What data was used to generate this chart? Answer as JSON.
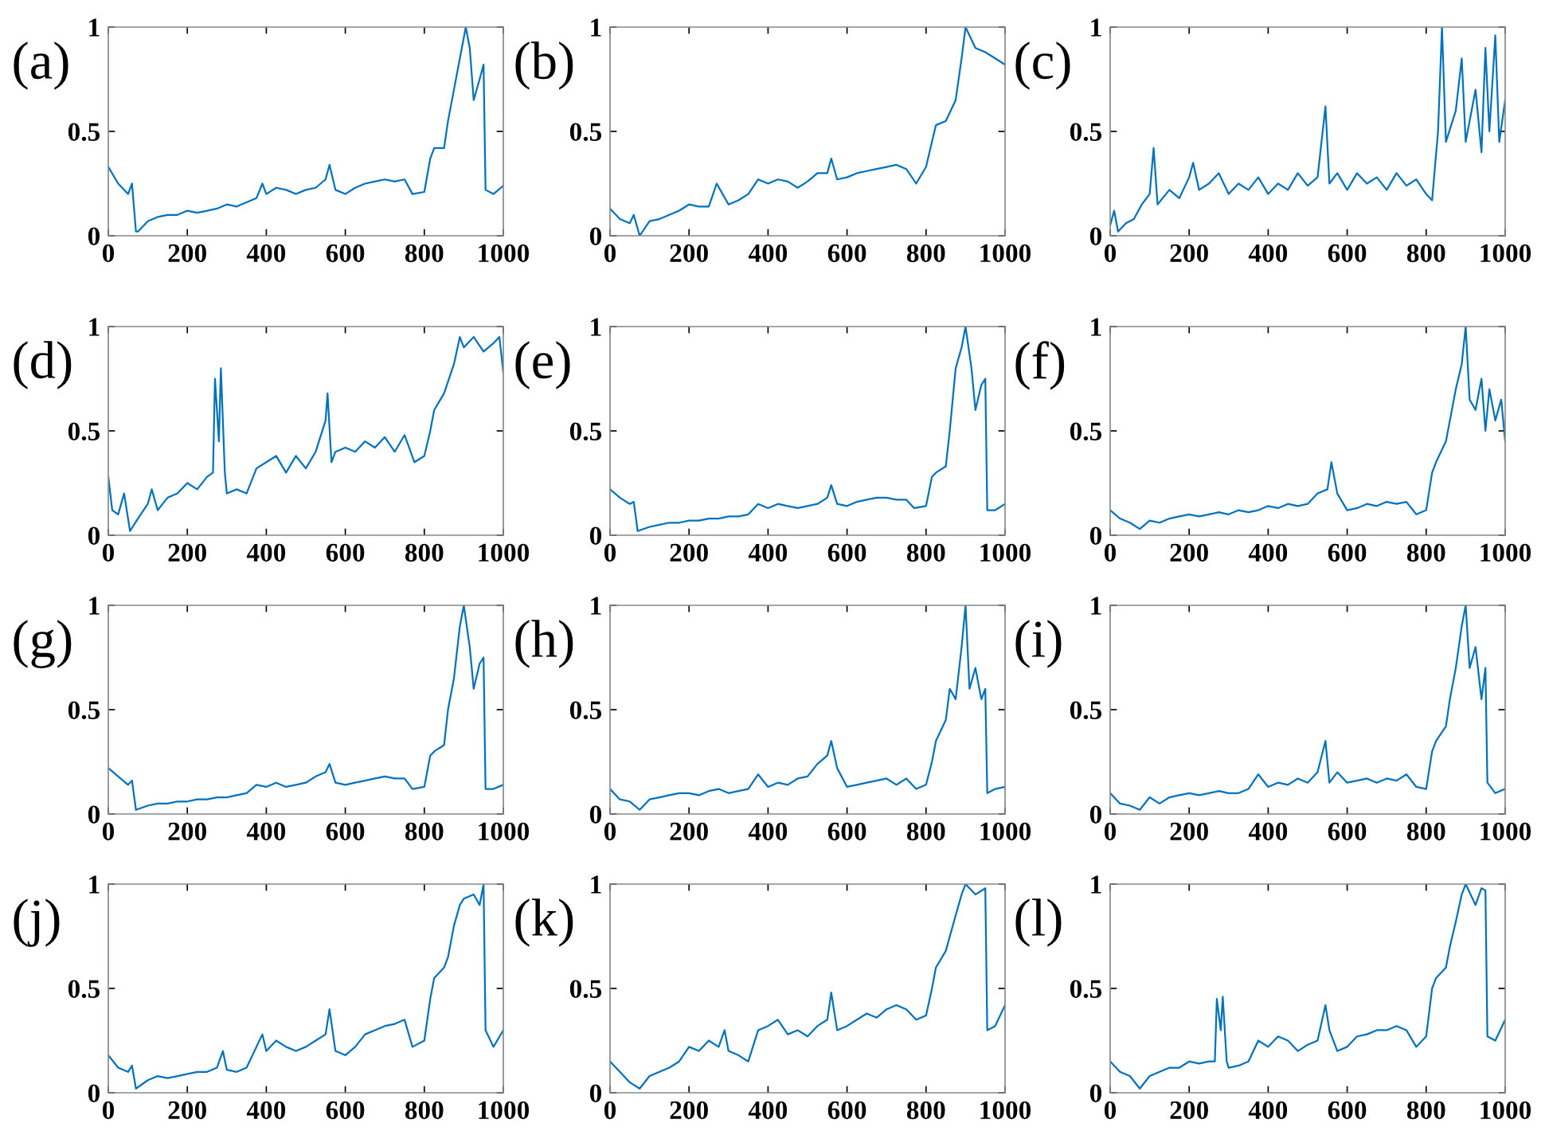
{
  "chart_data": [
    {
      "type": "line",
      "title": "(a)",
      "color": "#0072bd",
      "xlim": [
        0,
        1000
      ],
      "ylim": [
        0,
        1
      ],
      "xticks": [
        0,
        200,
        400,
        600,
        800,
        1000
      ],
      "yticks": [
        0,
        0.5,
        1
      ],
      "x": [
        0,
        25,
        50,
        60,
        70,
        75,
        100,
        125,
        150,
        175,
        200,
        225,
        250,
        275,
        300,
        325,
        350,
        375,
        390,
        400,
        425,
        450,
        475,
        500,
        525,
        550,
        560,
        575,
        600,
        625,
        650,
        675,
        700,
        725,
        750,
        770,
        800,
        815,
        825,
        850,
        860,
        875,
        890,
        905,
        915,
        925,
        940,
        950,
        955,
        975,
        1000
      ],
      "values": [
        0.33,
        0.25,
        0.2,
        0.25,
        0.02,
        0.02,
        0.07,
        0.09,
        0.1,
        0.1,
        0.12,
        0.11,
        0.12,
        0.13,
        0.15,
        0.14,
        0.16,
        0.18,
        0.25,
        0.2,
        0.23,
        0.22,
        0.2,
        0.22,
        0.23,
        0.27,
        0.34,
        0.22,
        0.2,
        0.23,
        0.25,
        0.26,
        0.27,
        0.26,
        0.27,
        0.2,
        0.21,
        0.37,
        0.42,
        0.42,
        0.55,
        0.7,
        0.85,
        1.0,
        0.9,
        0.65,
        0.75,
        0.82,
        0.22,
        0.2,
        0.24
      ]
    },
    {
      "type": "line",
      "title": "(b)",
      "color": "#0072bd",
      "xlim": [
        0,
        1000
      ],
      "ylim": [
        0,
        1
      ],
      "xticks": [
        0,
        200,
        400,
        600,
        800,
        1000
      ],
      "yticks": [
        0,
        0.5,
        1
      ],
      "x": [
        0,
        25,
        50,
        60,
        75,
        100,
        125,
        150,
        175,
        200,
        225,
        250,
        270,
        285,
        300,
        325,
        350,
        375,
        400,
        425,
        450,
        475,
        500,
        525,
        550,
        560,
        575,
        600,
        625,
        650,
        675,
        700,
        725,
        750,
        775,
        800,
        815,
        825,
        850,
        875,
        890,
        900,
        925,
        950,
        975,
        1000
      ],
      "values": [
        0.13,
        0.08,
        0.06,
        0.1,
        0.0,
        0.07,
        0.08,
        0.1,
        0.12,
        0.15,
        0.14,
        0.14,
        0.25,
        0.2,
        0.15,
        0.17,
        0.2,
        0.27,
        0.25,
        0.27,
        0.26,
        0.23,
        0.26,
        0.3,
        0.3,
        0.37,
        0.27,
        0.28,
        0.3,
        0.31,
        0.32,
        0.33,
        0.34,
        0.32,
        0.25,
        0.33,
        0.45,
        0.53,
        0.55,
        0.65,
        0.85,
        1.0,
        0.9,
        0.88,
        0.85,
        0.82
      ]
    },
    {
      "type": "line",
      "title": "(c)",
      "color": "#0072bd",
      "xlim": [
        0,
        1000
      ],
      "ylim": [
        0,
        1
      ],
      "xticks": [
        0,
        200,
        400,
        600,
        800,
        1000
      ],
      "yticks": [
        0,
        0.5,
        1
      ],
      "x": [
        0,
        10,
        20,
        40,
        60,
        80,
        100,
        110,
        120,
        150,
        175,
        200,
        210,
        225,
        250,
        275,
        300,
        325,
        350,
        375,
        400,
        425,
        450,
        475,
        500,
        525,
        545,
        555,
        575,
        600,
        625,
        650,
        675,
        700,
        725,
        750,
        775,
        800,
        815,
        830,
        840,
        850,
        875,
        890,
        900,
        925,
        940,
        950,
        960,
        975,
        985,
        1000
      ],
      "values": [
        0.05,
        0.12,
        0.02,
        0.06,
        0.08,
        0.15,
        0.2,
        0.42,
        0.15,
        0.22,
        0.18,
        0.28,
        0.35,
        0.22,
        0.25,
        0.3,
        0.2,
        0.25,
        0.22,
        0.28,
        0.2,
        0.25,
        0.22,
        0.3,
        0.24,
        0.28,
        0.62,
        0.25,
        0.3,
        0.22,
        0.3,
        0.25,
        0.28,
        0.22,
        0.3,
        0.24,
        0.27,
        0.2,
        0.17,
        0.5,
        1.0,
        0.45,
        0.6,
        0.85,
        0.45,
        0.7,
        0.4,
        0.9,
        0.5,
        0.96,
        0.45,
        0.65
      ]
    },
    {
      "type": "line",
      "title": "(d)",
      "color": "#0072bd",
      "xlim": [
        0,
        1000
      ],
      "ylim": [
        0,
        1
      ],
      "xticks": [
        0,
        200,
        400,
        600,
        800,
        1000
      ],
      "yticks": [
        0,
        0.5,
        1
      ],
      "x": [
        0,
        10,
        25,
        40,
        55,
        75,
        100,
        110,
        125,
        150,
        175,
        200,
        225,
        250,
        265,
        270,
        280,
        285,
        295,
        300,
        325,
        350,
        375,
        400,
        425,
        450,
        475,
        500,
        525,
        550,
        555,
        565,
        575,
        600,
        625,
        650,
        675,
        700,
        725,
        750,
        775,
        800,
        815,
        825,
        850,
        875,
        890,
        900,
        925,
        950,
        975,
        990,
        1000
      ],
      "values": [
        0.28,
        0.12,
        0.1,
        0.2,
        0.02,
        0.08,
        0.15,
        0.22,
        0.12,
        0.18,
        0.2,
        0.25,
        0.22,
        0.28,
        0.3,
        0.75,
        0.45,
        0.8,
        0.3,
        0.2,
        0.22,
        0.2,
        0.32,
        0.35,
        0.38,
        0.3,
        0.38,
        0.32,
        0.4,
        0.55,
        0.68,
        0.35,
        0.4,
        0.42,
        0.4,
        0.45,
        0.42,
        0.47,
        0.4,
        0.48,
        0.35,
        0.38,
        0.5,
        0.6,
        0.68,
        0.82,
        0.95,
        0.9,
        0.95,
        0.88,
        0.92,
        0.95,
        0.78
      ]
    },
    {
      "type": "line",
      "title": "(e)",
      "color": "#0072bd",
      "xlim": [
        0,
        1000
      ],
      "ylim": [
        0,
        1
      ],
      "xticks": [
        0,
        200,
        400,
        600,
        800,
        1000
      ],
      "yticks": [
        0,
        0.5,
        1
      ],
      "x": [
        0,
        25,
        50,
        60,
        70,
        100,
        125,
        150,
        175,
        200,
        225,
        250,
        275,
        300,
        325,
        350,
        375,
        400,
        425,
        450,
        475,
        500,
        525,
        550,
        560,
        575,
        600,
        625,
        650,
        675,
        700,
        725,
        750,
        770,
        800,
        815,
        825,
        850,
        860,
        875,
        890,
        900,
        915,
        925,
        940,
        950,
        955,
        975,
        1000
      ],
      "values": [
        0.22,
        0.18,
        0.15,
        0.16,
        0.02,
        0.04,
        0.05,
        0.06,
        0.06,
        0.07,
        0.07,
        0.08,
        0.08,
        0.09,
        0.09,
        0.1,
        0.15,
        0.13,
        0.15,
        0.14,
        0.13,
        0.14,
        0.15,
        0.18,
        0.24,
        0.15,
        0.14,
        0.16,
        0.17,
        0.18,
        0.18,
        0.17,
        0.17,
        0.13,
        0.14,
        0.28,
        0.3,
        0.33,
        0.5,
        0.8,
        0.9,
        1.0,
        0.8,
        0.6,
        0.72,
        0.75,
        0.12,
        0.12,
        0.15
      ]
    },
    {
      "type": "line",
      "title": "(f)",
      "color": "#0072bd",
      "xlim": [
        0,
        1000
      ],
      "ylim": [
        0,
        1
      ],
      "xticks": [
        0,
        200,
        400,
        600,
        800,
        1000
      ],
      "yticks": [
        0,
        0.5,
        1
      ],
      "x": [
        0,
        25,
        50,
        75,
        100,
        125,
        150,
        175,
        200,
        225,
        250,
        275,
        300,
        325,
        350,
        375,
        400,
        425,
        450,
        475,
        500,
        525,
        550,
        560,
        575,
        600,
        625,
        650,
        675,
        700,
        725,
        750,
        775,
        800,
        815,
        825,
        850,
        875,
        890,
        900,
        910,
        925,
        940,
        950,
        960,
        975,
        990,
        1000
      ],
      "values": [
        0.12,
        0.08,
        0.06,
        0.03,
        0.07,
        0.06,
        0.08,
        0.09,
        0.1,
        0.09,
        0.1,
        0.11,
        0.1,
        0.12,
        0.11,
        0.12,
        0.14,
        0.13,
        0.15,
        0.14,
        0.15,
        0.2,
        0.22,
        0.35,
        0.2,
        0.12,
        0.13,
        0.15,
        0.14,
        0.16,
        0.15,
        0.16,
        0.1,
        0.12,
        0.3,
        0.35,
        0.45,
        0.7,
        0.82,
        1.0,
        0.65,
        0.6,
        0.75,
        0.5,
        0.7,
        0.55,
        0.65,
        0.45
      ]
    },
    {
      "type": "line",
      "title": "(g)",
      "color": "#0072bd",
      "xlim": [
        0,
        1000
      ],
      "ylim": [
        0,
        1
      ],
      "xticks": [
        0,
        200,
        400,
        600,
        800,
        1000
      ],
      "yticks": [
        0,
        0.5,
        1
      ],
      "x": [
        0,
        25,
        50,
        60,
        70,
        100,
        125,
        150,
        175,
        200,
        225,
        250,
        275,
        300,
        325,
        350,
        375,
        400,
        425,
        450,
        475,
        500,
        525,
        550,
        560,
        575,
        600,
        625,
        650,
        675,
        700,
        725,
        750,
        770,
        800,
        815,
        825,
        850,
        860,
        875,
        890,
        900,
        915,
        925,
        940,
        950,
        955,
        975,
        1000
      ],
      "values": [
        0.22,
        0.18,
        0.14,
        0.16,
        0.02,
        0.04,
        0.05,
        0.05,
        0.06,
        0.06,
        0.07,
        0.07,
        0.08,
        0.08,
        0.09,
        0.1,
        0.14,
        0.13,
        0.15,
        0.13,
        0.14,
        0.15,
        0.18,
        0.2,
        0.24,
        0.15,
        0.14,
        0.15,
        0.16,
        0.17,
        0.18,
        0.17,
        0.17,
        0.12,
        0.13,
        0.28,
        0.3,
        0.33,
        0.5,
        0.65,
        0.9,
        1.0,
        0.8,
        0.6,
        0.72,
        0.75,
        0.12,
        0.12,
        0.14
      ]
    },
    {
      "type": "line",
      "title": "(h)",
      "color": "#0072bd",
      "xlim": [
        0,
        1000
      ],
      "ylim": [
        0,
        1
      ],
      "xticks": [
        0,
        200,
        400,
        600,
        800,
        1000
      ],
      "yticks": [
        0,
        0.5,
        1
      ],
      "x": [
        0,
        25,
        50,
        75,
        100,
        125,
        150,
        175,
        200,
        225,
        250,
        275,
        300,
        325,
        350,
        375,
        400,
        425,
        450,
        475,
        500,
        525,
        550,
        560,
        575,
        600,
        625,
        650,
        675,
        700,
        725,
        750,
        775,
        800,
        815,
        825,
        850,
        860,
        875,
        890,
        900,
        910,
        925,
        940,
        950,
        955,
        975,
        1000
      ],
      "values": [
        0.12,
        0.07,
        0.06,
        0.02,
        0.07,
        0.08,
        0.09,
        0.1,
        0.1,
        0.09,
        0.11,
        0.12,
        0.1,
        0.11,
        0.12,
        0.19,
        0.13,
        0.15,
        0.14,
        0.17,
        0.18,
        0.24,
        0.28,
        0.35,
        0.22,
        0.13,
        0.14,
        0.15,
        0.16,
        0.17,
        0.14,
        0.17,
        0.12,
        0.14,
        0.25,
        0.35,
        0.45,
        0.6,
        0.55,
        0.8,
        1.0,
        0.6,
        0.7,
        0.55,
        0.6,
        0.1,
        0.12,
        0.13
      ]
    },
    {
      "type": "line",
      "title": "(i)",
      "color": "#0072bd",
      "xlim": [
        0,
        1000
      ],
      "ylim": [
        0,
        1
      ],
      "xticks": [
        0,
        200,
        400,
        600,
        800,
        1000
      ],
      "yticks": [
        0,
        0.5,
        1
      ],
      "x": [
        0,
        25,
        50,
        75,
        100,
        125,
        150,
        175,
        200,
        225,
        250,
        275,
        300,
        325,
        350,
        375,
        400,
        425,
        450,
        475,
        500,
        525,
        545,
        555,
        575,
        600,
        625,
        650,
        675,
        700,
        725,
        750,
        775,
        800,
        815,
        825,
        850,
        860,
        875,
        890,
        900,
        910,
        925,
        940,
        950,
        955,
        975,
        1000
      ],
      "values": [
        0.1,
        0.05,
        0.04,
        0.02,
        0.08,
        0.05,
        0.08,
        0.09,
        0.1,
        0.09,
        0.1,
        0.11,
        0.1,
        0.1,
        0.12,
        0.19,
        0.13,
        0.15,
        0.14,
        0.17,
        0.15,
        0.2,
        0.35,
        0.15,
        0.2,
        0.15,
        0.16,
        0.17,
        0.15,
        0.17,
        0.16,
        0.19,
        0.13,
        0.12,
        0.3,
        0.35,
        0.42,
        0.55,
        0.7,
        0.9,
        1.0,
        0.7,
        0.8,
        0.55,
        0.7,
        0.15,
        0.1,
        0.12
      ]
    },
    {
      "type": "line",
      "title": "(j)",
      "color": "#0072bd",
      "xlim": [
        0,
        1000
      ],
      "ylim": [
        0,
        1
      ],
      "xticks": [
        0,
        200,
        400,
        600,
        800,
        1000
      ],
      "yticks": [
        0,
        0.5,
        1
      ],
      "x": [
        0,
        25,
        50,
        60,
        70,
        100,
        125,
        150,
        175,
        200,
        225,
        250,
        275,
        290,
        300,
        325,
        350,
        375,
        390,
        400,
        425,
        450,
        475,
        500,
        525,
        550,
        560,
        575,
        600,
        625,
        650,
        675,
        700,
        725,
        750,
        770,
        800,
        815,
        825,
        850,
        860,
        875,
        890,
        900,
        925,
        940,
        950,
        955,
        975,
        1000
      ],
      "values": [
        0.18,
        0.12,
        0.1,
        0.13,
        0.02,
        0.06,
        0.08,
        0.07,
        0.08,
        0.09,
        0.1,
        0.1,
        0.12,
        0.2,
        0.11,
        0.1,
        0.12,
        0.22,
        0.28,
        0.2,
        0.25,
        0.22,
        0.2,
        0.22,
        0.25,
        0.28,
        0.4,
        0.2,
        0.18,
        0.22,
        0.28,
        0.3,
        0.32,
        0.33,
        0.35,
        0.22,
        0.25,
        0.45,
        0.55,
        0.6,
        0.65,
        0.8,
        0.9,
        0.93,
        0.95,
        0.9,
        1.0,
        0.3,
        0.22,
        0.3
      ]
    },
    {
      "type": "line",
      "title": "(k)",
      "color": "#0072bd",
      "xlim": [
        0,
        1000
      ],
      "ylim": [
        0,
        1
      ],
      "xticks": [
        0,
        200,
        400,
        600,
        800,
        1000
      ],
      "yticks": [
        0,
        0.5,
        1
      ],
      "x": [
        0,
        25,
        50,
        75,
        100,
        125,
        150,
        175,
        200,
        225,
        250,
        275,
        290,
        300,
        325,
        350,
        375,
        400,
        425,
        450,
        475,
        500,
        525,
        550,
        560,
        575,
        600,
        625,
        650,
        675,
        700,
        725,
        750,
        775,
        800,
        815,
        825,
        850,
        875,
        890,
        900,
        925,
        950,
        955,
        975,
        1000
      ],
      "values": [
        0.15,
        0.1,
        0.05,
        0.02,
        0.08,
        0.1,
        0.12,
        0.15,
        0.22,
        0.2,
        0.25,
        0.22,
        0.3,
        0.2,
        0.18,
        0.15,
        0.3,
        0.32,
        0.35,
        0.28,
        0.3,
        0.27,
        0.32,
        0.35,
        0.48,
        0.3,
        0.32,
        0.35,
        0.38,
        0.36,
        0.4,
        0.42,
        0.4,
        0.35,
        0.37,
        0.5,
        0.6,
        0.68,
        0.85,
        0.95,
        1.0,
        0.95,
        0.98,
        0.3,
        0.32,
        0.42
      ]
    },
    {
      "type": "line",
      "title": "(l)",
      "color": "#0072bd",
      "xlim": [
        0,
        1000
      ],
      "ylim": [
        0,
        1
      ],
      "xticks": [
        0,
        200,
        400,
        600,
        800,
        1000
      ],
      "yticks": [
        0,
        0.5,
        1
      ],
      "x": [
        0,
        25,
        50,
        75,
        100,
        125,
        150,
        175,
        200,
        225,
        250,
        265,
        270,
        280,
        285,
        295,
        300,
        325,
        350,
        375,
        400,
        425,
        450,
        475,
        500,
        525,
        545,
        555,
        575,
        600,
        625,
        650,
        675,
        700,
        725,
        750,
        775,
        800,
        815,
        825,
        850,
        860,
        875,
        890,
        900,
        925,
        940,
        950,
        955,
        975,
        1000
      ],
      "values": [
        0.15,
        0.1,
        0.08,
        0.02,
        0.08,
        0.1,
        0.12,
        0.12,
        0.15,
        0.14,
        0.15,
        0.15,
        0.45,
        0.3,
        0.46,
        0.15,
        0.12,
        0.13,
        0.15,
        0.25,
        0.22,
        0.27,
        0.25,
        0.2,
        0.23,
        0.25,
        0.42,
        0.3,
        0.2,
        0.22,
        0.27,
        0.28,
        0.3,
        0.3,
        0.32,
        0.3,
        0.22,
        0.27,
        0.5,
        0.55,
        0.6,
        0.7,
        0.82,
        0.95,
        1.0,
        0.9,
        0.98,
        0.97,
        0.27,
        0.25,
        0.35
      ]
    }
  ]
}
